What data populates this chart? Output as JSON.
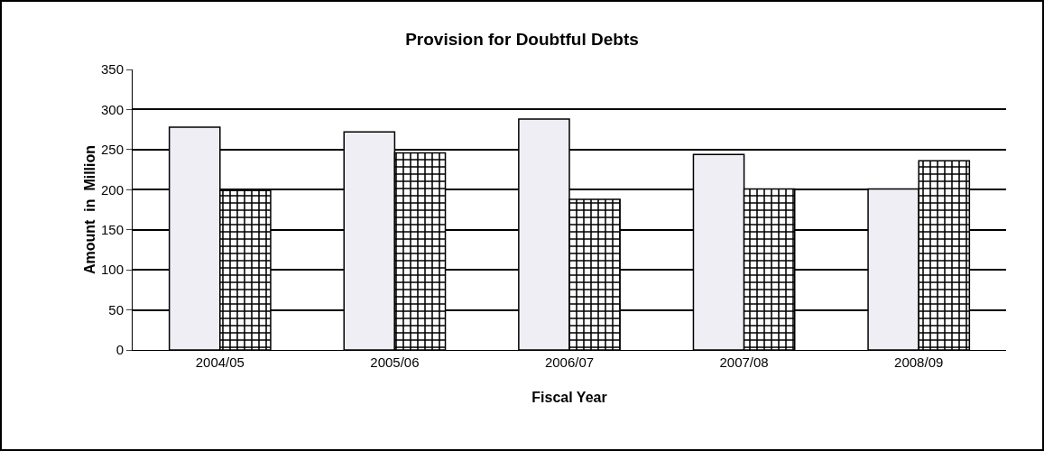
{
  "chart_data": {
    "type": "bar",
    "title": "Provision for Doubtful Debts",
    "xlabel": "Fiscal Year",
    "ylabel": "Amount  in  Million",
    "categories": [
      "2004/05",
      "2005/06",
      "2006/07",
      "2007/08",
      "2008/09"
    ],
    "series": [
      {
        "color": "#eeeef4",
        "values": [
          278,
          272,
          288,
          244,
          201
        ]
      },
      {
        "color": "#000000",
        "values": [
          199,
          246,
          188,
          201,
          236
        ]
      }
    ],
    "ylim": [
      0,
      350
    ],
    "yticks": [
      0,
      50,
      100,
      150,
      200,
      250,
      300,
      350
    ],
    "grid": "y"
  }
}
